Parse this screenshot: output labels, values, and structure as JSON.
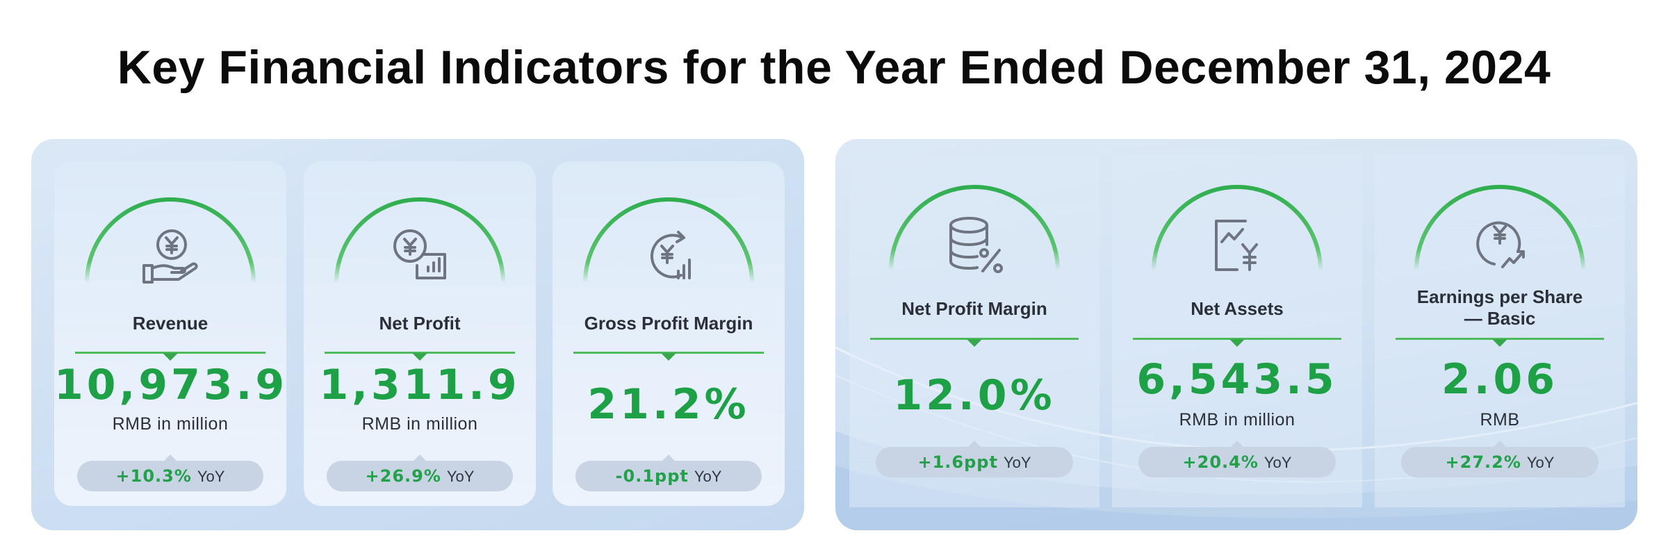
{
  "page_title": "Key Financial Indicators for the Year Ended December 31, 2024",
  "colors": {
    "accent_green": "#1ea046",
    "arc_green": "#3db556",
    "icon_gray": "#6b7280",
    "pill_bg": "#c8d3e3",
    "panel_bg": "#d3e3f4"
  },
  "indicators": [
    {
      "label": "Revenue",
      "value": "10,973.9",
      "unit": "RMB in million",
      "change": "+10.3%",
      "yoy": "YoY",
      "icon": "yuan-coin-hand-icon"
    },
    {
      "label": "Net Profit",
      "value": "1,311.9",
      "unit": "RMB in million",
      "change": "+26.9%",
      "yoy": "YoY",
      "icon": "yuan-coin-bar-chart-icon"
    },
    {
      "label": "Gross Profit Margin",
      "value": "21.2%",
      "unit": "",
      "change": "-0.1ppt",
      "yoy": "YoY",
      "icon": "yuan-cycle-chart-icon"
    },
    {
      "label": "Net Profit Margin",
      "value": "12.0%",
      "unit": "",
      "change": "+1.6ppt",
      "yoy": "YoY",
      "icon": "database-percent-icon"
    },
    {
      "label": "Net Assets",
      "value": "6,543.5",
      "unit": "RMB in million",
      "change": "+20.4%",
      "yoy": "YoY",
      "icon": "yuan-trend-document-icon"
    },
    {
      "label": "Earnings per Share\n— Basic",
      "value": "2.06",
      "unit": "RMB",
      "change": "+27.2%",
      "yoy": "YoY",
      "icon": "yuan-coin-growth-icon"
    }
  ]
}
